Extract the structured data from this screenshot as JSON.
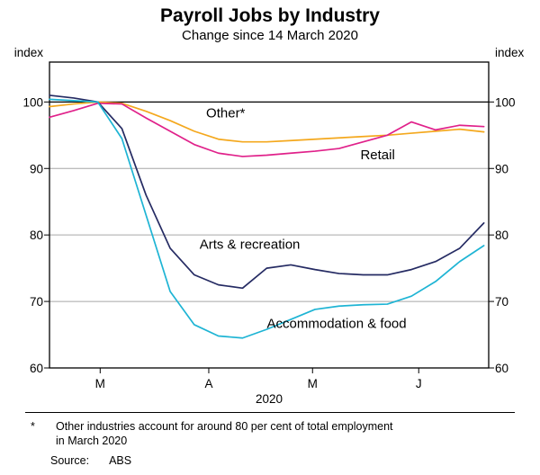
{
  "chart_data": {
    "type": "line",
    "title": "Payroll Jobs by Industry",
    "subtitle": "Change since 14 March 2020",
    "unit_label_left": "index",
    "unit_label_right": "index",
    "x_axis_label": "2020",
    "ylim": [
      60,
      106
    ],
    "yticks": [
      60,
      70,
      80,
      90,
      100
    ],
    "gridlines": [
      70,
      80,
      90
    ],
    "reference_line": 100,
    "xlim": [
      0,
      18.2
    ],
    "x_ticks": [
      {
        "pos": 2.1,
        "label": "M"
      },
      {
        "pos": 6.6,
        "label": "A"
      },
      {
        "pos": 10.9,
        "label": "M"
      },
      {
        "pos": 15.3,
        "label": "J"
      }
    ],
    "series": [
      {
        "name": "Other*",
        "color": "#F4A81D",
        "label_x": 7.3,
        "label_y": 97.7,
        "values": [
          99.3,
          99.7,
          100,
          99.8,
          98.6,
          97.2,
          95.6,
          94.4,
          94.0,
          94.0,
          94.2,
          94.4,
          94.6,
          94.8,
          95.0,
          95.3,
          95.6,
          95.9,
          95.5
        ]
      },
      {
        "name": "Retail",
        "color": "#E0218A",
        "label_x": 13.6,
        "label_y": 91.4,
        "values": [
          97.7,
          98.7,
          99.8,
          99.7,
          97.6,
          95.6,
          93.6,
          92.3,
          91.8,
          92.0,
          92.3,
          92.6,
          93.0,
          94.0,
          95.0,
          97.0,
          95.8,
          96.5,
          96.3
        ]
      },
      {
        "name": "Arts & recreation",
        "color": "#252B63",
        "label_x": 8.3,
        "label_y": 77.9,
        "values": [
          101.0,
          100.6,
          100.0,
          96.0,
          86.0,
          78.0,
          74.0,
          72.5,
          72.0,
          75.0,
          75.5,
          74.8,
          74.2,
          74.0,
          74.0,
          74.8,
          76.0,
          78.0,
          81.8
        ]
      },
      {
        "name": "Accommodation & food",
        "color": "#1EB4D4",
        "label_x": 11.9,
        "label_y": 66.0,
        "values": [
          100.4,
          100.2,
          100.0,
          94.5,
          83.0,
          71.5,
          66.5,
          64.8,
          64.5,
          65.8,
          67.3,
          68.8,
          69.3,
          69.5,
          69.6,
          70.8,
          73.0,
          76.0,
          78.4
        ]
      }
    ]
  },
  "footnote": {
    "marker": "*",
    "lines": [
      "Other industries account for around 80 per cent of total employment",
      "in March 2020"
    ]
  },
  "source": {
    "label": "Source:",
    "value": "ABS"
  }
}
